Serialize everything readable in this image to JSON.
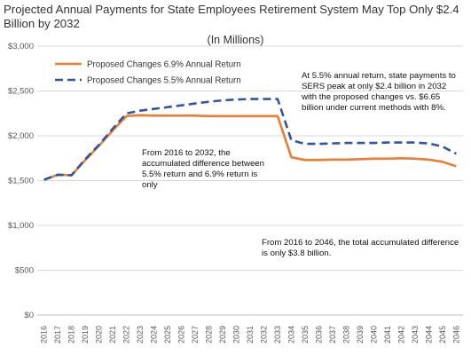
{
  "chart_data": {
    "type": "line",
    "title": "Projected Annual Payments for State Employees Retirement System May Top Only $2.4 Billion by 2032",
    "subtitle": "(In Millions)",
    "xlabel": "",
    "ylabel": "",
    "ylim": [
      0,
      3000
    ],
    "yticks": [
      "$0",
      "$500",
      "$1,000",
      "$1,500",
      "$2,000",
      "$2,500",
      "$3,000"
    ],
    "ytick_values": [
      0,
      500,
      1000,
      1500,
      2000,
      2500,
      3000
    ],
    "x": [
      "2016",
      "2017",
      "2018",
      "2019",
      "2020",
      "2021",
      "2022",
      "2023",
      "2024",
      "2025",
      "2026",
      "2027",
      "2028",
      "2029",
      "2030",
      "2031",
      "2032",
      "2033",
      "2034",
      "2035",
      "2036",
      "2037",
      "2038",
      "2039",
      "2040",
      "2041",
      "2042",
      "2043",
      "2044",
      "2045",
      "2046"
    ],
    "grid": "horizontal",
    "legend": "top-left",
    "series": [
      {
        "name": "Proposed Changes 6.9% Annual Return",
        "color": "#ED7D31",
        "style": "solid",
        "values": [
          1510,
          1565,
          1560,
          1730,
          1890,
          2060,
          2220,
          2230,
          2225,
          2225,
          2225,
          2225,
          2220,
          2220,
          2220,
          2220,
          2220,
          2220,
          1760,
          1730,
          1730,
          1735,
          1735,
          1740,
          1745,
          1745,
          1750,
          1745,
          1735,
          1710,
          1660
        ]
      },
      {
        "name": "Proposed Changes 5.5% Annual Return",
        "color": "#2F55A4",
        "style": "dashed",
        "values": [
          1510,
          1565,
          1560,
          1740,
          1900,
          2080,
          2250,
          2280,
          2300,
          2320,
          2340,
          2360,
          2380,
          2395,
          2405,
          2410,
          2410,
          2410,
          1950,
          1910,
          1910,
          1915,
          1920,
          1920,
          1920,
          1925,
          1925,
          1925,
          1915,
          1880,
          1800
        ]
      }
    ],
    "annotations": [
      "From 2016 to 2032, the accumulated difference between 5.5% return and 6.9% return is only",
      "At 5.5% annual return, state payments to SERS peak at only $2.4 billion in 2032 with the proposed changes vs. $6.65 billion under current methods with 8%.",
      "From 2016 to 2046, the total accumulated difference is only $3.8 billion."
    ]
  }
}
